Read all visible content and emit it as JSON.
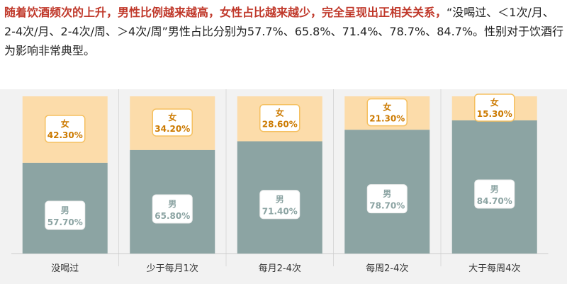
{
  "text": {
    "headline": "随着饮酒频次的上升，男性比例越来越高，女性占比越来越少，完全呈现出正相关关系，",
    "body": "“没喝过、＜1次/月、2-4次/月、2-4次/周、＞4次/周”男性占比分别为57.7%、65.8%、71.4%、78.7%、84.7%。性别对于饮酒行为影响非常典型。"
  },
  "colors": {
    "male": "#8ca4a3",
    "female": "#fcdcaa",
    "male_text": "#8ca4a3",
    "female_text": "#cc7a00",
    "label_border_female": "#f5c060",
    "label_border_male": "#ffffff"
  },
  "chart_data": {
    "type": "bar",
    "stacked": true,
    "categories": [
      "没喝过",
      "少于每月1次",
      "每月2-4次",
      "每周2-4次",
      "大于每周4次"
    ],
    "series": [
      {
        "name": "男",
        "values": [
          57.7,
          65.8,
          71.4,
          78.7,
          84.7
        ],
        "labels": [
          "57.70%",
          "65.80%",
          "71.40%",
          "78.70%",
          "84.70%"
        ]
      },
      {
        "name": "女",
        "values": [
          42.3,
          34.2,
          28.6,
          21.3,
          15.3
        ],
        "labels": [
          "42.30%",
          "34.20%",
          "28.60%",
          "21.30%",
          "15.30%"
        ]
      }
    ],
    "ylim": [
      0,
      100
    ],
    "grid": false
  }
}
